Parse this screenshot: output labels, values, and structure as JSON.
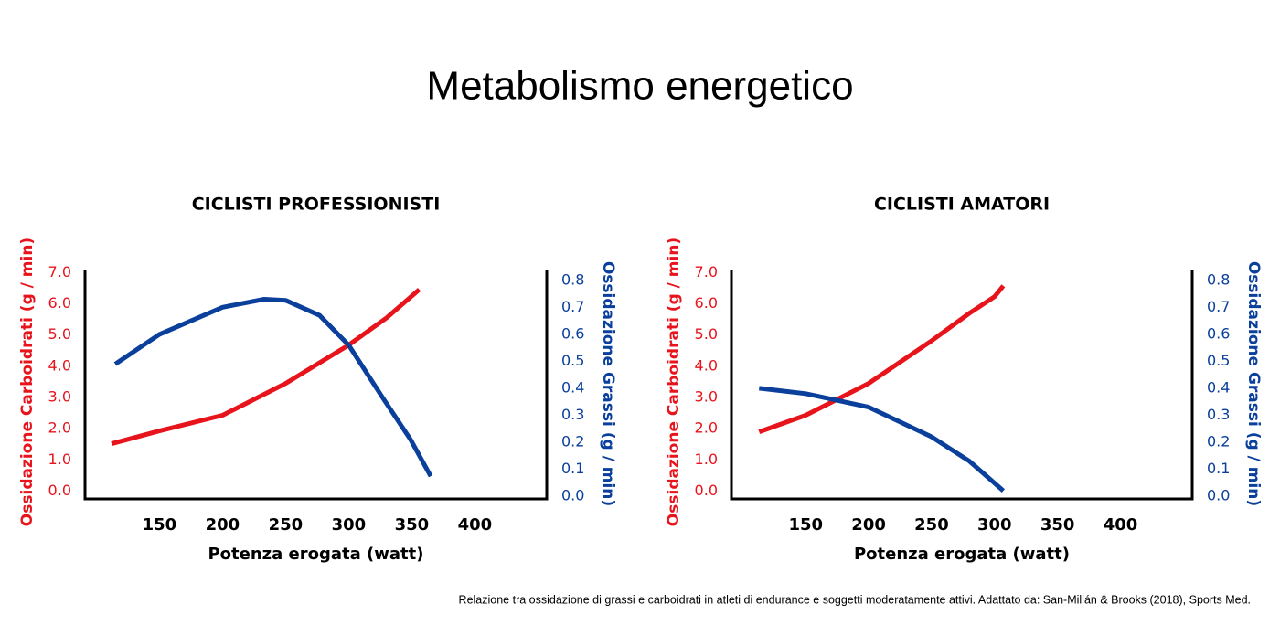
{
  "title": "Metabolismo energetico",
  "footnote": "Relazione tra ossidazione di grassi e carboidrati in atleti di endurance e soggetti moderatamente attivi. Adattato da: San-Millán & Brooks (2018), Sports Med.",
  "chart_data": [
    {
      "type": "line",
      "title": "CICLISTI PROFESSIONISTI",
      "xlabel": "Potenza erogata (watt)",
      "ylabel": "Ossidazione Carboidrati (g / min)",
      "y2label": "Ossidazione Grassi (g / min)",
      "xlim": [
        91,
        457
      ],
      "xticks": [
        150,
        200,
        250,
        300,
        350,
        400
      ],
      "ylim": [
        -0.25,
        7.1
      ],
      "yticks": [
        {
          "value": 0,
          "label": "0.0"
        },
        {
          "value": 1,
          "label": "1.0"
        },
        {
          "value": 2,
          "label": "2.0"
        },
        {
          "value": 3,
          "label": "3.0"
        },
        {
          "value": 4,
          "label": "4.0"
        },
        {
          "value": 5,
          "label": "5.0"
        },
        {
          "value": 6,
          "label": "6.0"
        },
        {
          "value": 7,
          "label": "7.0"
        }
      ],
      "y2lim": [
        -0.01,
        0.84
      ],
      "y2ticks": [
        {
          "value": 0,
          "label": "0.0"
        },
        0.1,
        0.2,
        0.3,
        0.4,
        0.5,
        0.6,
        0.7,
        0.8
      ],
      "series": [
        {
          "color": "#e8141c",
          "axis": "y",
          "x": [
            112,
            150,
            200,
            250,
            300,
            330,
            356
          ],
          "values": [
            1.52,
            1.93,
            2.43,
            3.45,
            4.68,
            5.55,
            6.46
          ]
        },
        {
          "color": "#0a3f9c",
          "axis": "y2",
          "x": [
            115,
            150,
            200,
            233,
            250,
            277,
            300,
            327,
            349,
            365
          ],
          "values": [
            0.49,
            0.6,
            0.7,
            0.73,
            0.726,
            0.67,
            0.56,
            0.365,
            0.21,
            0.074
          ]
        }
      ]
    },
    {
      "type": "line",
      "title": "CICLISTI AMATORI",
      "xlabel": "Potenza erogata (watt)",
      "ylabel": "Ossidazione Carboidrati (g / min)",
      "y2label": "Ossidazione Grassi (g / min)",
      "xlim": [
        91,
        457
      ],
      "xticks": [
        150,
        200,
        250,
        300,
        350,
        400
      ],
      "ylim": [
        -0.25,
        7.1
      ],
      "yticks": [
        {
          "value": 0,
          "label": "0.0"
        },
        {
          "value": 1,
          "label": "1.0"
        },
        {
          "value": 2,
          "label": "2.0"
        },
        {
          "value": 3,
          "label": "3.0"
        },
        {
          "value": 4,
          "label": "4.0"
        },
        {
          "value": 5,
          "label": "5.0"
        },
        {
          "value": 6,
          "label": "6.0"
        },
        {
          "value": 7,
          "label": "7.0"
        }
      ],
      "y2lim": [
        -0.01,
        0.84
      ],
      "y2ticks": [
        {
          "value": 0,
          "label": "0.0"
        },
        0.1,
        0.2,
        0.3,
        0.4,
        0.5,
        0.6,
        0.7,
        0.8
      ],
      "series": [
        {
          "color": "#e8141c",
          "axis": "y",
          "x": [
            113,
            150,
            200,
            250,
            280,
            300,
            307
          ],
          "values": [
            1.9,
            2.43,
            3.45,
            4.82,
            5.7,
            6.23,
            6.58
          ]
        },
        {
          "color": "#0a3f9c",
          "axis": "y2",
          "x": [
            113,
            150,
            200,
            250,
            280,
            307
          ],
          "values": [
            0.4,
            0.38,
            0.33,
            0.22,
            0.13,
            0.02
          ]
        }
      ]
    }
  ]
}
